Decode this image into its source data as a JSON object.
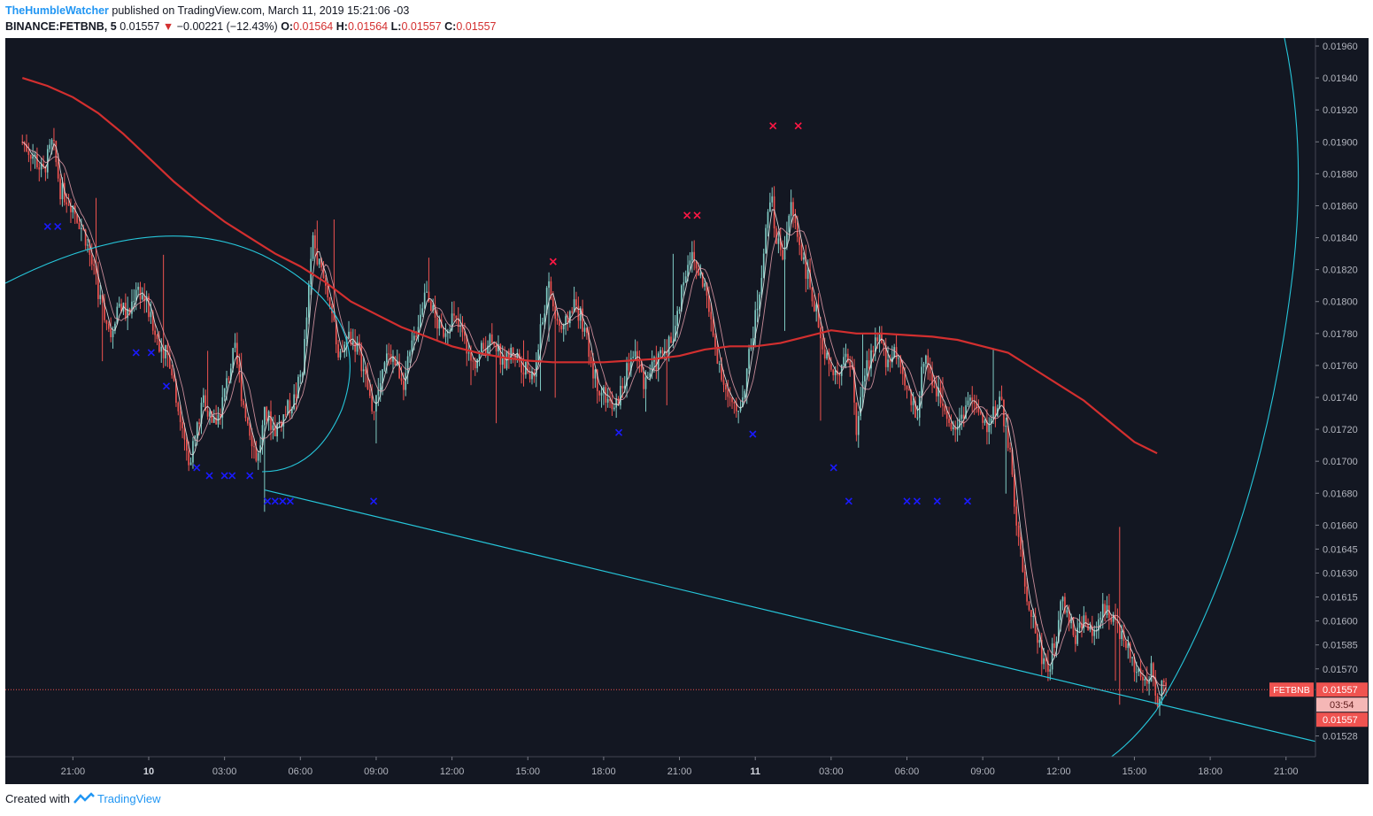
{
  "header": {
    "author": "TheHumbleWatcher",
    "published": "published on TradingView.com, March 11, 2019 15:21:06 -03",
    "symbol": "BINANCE:FETBNB, 5",
    "last": "0.01557",
    "arrow": "▼",
    "change": "−0.00221 (−12.43%)",
    "o_label": "O:",
    "o_value": "0.01564",
    "h_label": "H:",
    "h_value": "0.01564",
    "l_label": "L:",
    "l_value": "0.01557",
    "c_label": "C:",
    "c_value": "0.01557"
  },
  "footer": {
    "created_with": "Created with",
    "brand": "TradingView"
  },
  "colors": {
    "background": "#131722",
    "bull": "#80cbc4",
    "bear": "#ef5350",
    "ma_slow": "#d32f2f",
    "ma_fast": "#e8e8e8",
    "ma_fast2": "#f3a8b5",
    "drawing": "#26c6da",
    "buy_marker": "#1a1aff",
    "sell_marker": "#ff1744",
    "axis_text": "#b2b5be",
    "price_label_bg": "#ef5350"
  },
  "chart_data": {
    "type": "candlestick",
    "symbol": "FETBNB",
    "interval": "5",
    "ylim": [
      0.01515,
      0.01965
    ],
    "x_hours_range": [
      -5,
      50
    ],
    "y_ticks": [
      "0.01960",
      "0.01940",
      "0.01920",
      "0.01900",
      "0.01880",
      "0.01860",
      "0.01840",
      "0.01820",
      "0.01800",
      "0.01780",
      "0.01760",
      "0.01740",
      "0.01720",
      "0.01700",
      "0.01680",
      "0.01660",
      "0.01645",
      "0.01630",
      "0.01615",
      "0.01600",
      "0.01585",
      "0.01570",
      "0.01528"
    ],
    "x_ticks": [
      {
        "label": "21:00",
        "h": -3
      },
      {
        "label": "10",
        "h": 0,
        "bold": true
      },
      {
        "label": "03:00",
        "h": 3
      },
      {
        "label": "06:00",
        "h": 6
      },
      {
        "label": "09:00",
        "h": 9
      },
      {
        "label": "12:00",
        "h": 12
      },
      {
        "label": "15:00",
        "h": 15
      },
      {
        "label": "18:00",
        "h": 18
      },
      {
        "label": "21:00",
        "h": 21
      },
      {
        "label": "11",
        "h": 24,
        "bold": true
      },
      {
        "label": "03:00",
        "h": 27
      },
      {
        "label": "06:00",
        "h": 30
      },
      {
        "label": "09:00",
        "h": 33
      },
      {
        "label": "12:00",
        "h": 36
      },
      {
        "label": "15:00",
        "h": 39
      },
      {
        "label": "18:00",
        "h": 42
      },
      {
        "label": "21:00",
        "h": 45
      }
    ],
    "price_path": [
      [
        -5.0,
        0.019
      ],
      [
        -4.5,
        0.0189
      ],
      [
        -4.2,
        0.0188
      ],
      [
        -3.8,
        0.019
      ],
      [
        -3.5,
        0.0187
      ],
      [
        -3.0,
        0.0186
      ],
      [
        -2.5,
        0.0184
      ],
      [
        -2.2,
        0.0182
      ],
      [
        -1.9,
        0.018
      ],
      [
        -1.5,
        0.0178
      ],
      [
        -1.2,
        0.018
      ],
      [
        -0.8,
        0.0179
      ],
      [
        -0.5,
        0.0181
      ],
      [
        -0.1,
        0.018
      ],
      [
        0.2,
        0.0178
      ],
      [
        0.6,
        0.0177
      ],
      [
        0.9,
        0.0176
      ],
      [
        1.1,
        0.0174
      ],
      [
        1.3,
        0.0172
      ],
      [
        1.6,
        0.017
      ],
      [
        1.9,
        0.0172
      ],
      [
        2.2,
        0.0174
      ],
      [
        2.5,
        0.0172
      ],
      [
        2.8,
        0.0173
      ],
      [
        3.1,
        0.0175
      ],
      [
        3.4,
        0.0177
      ],
      [
        3.7,
        0.0174
      ],
      [
        4.0,
        0.0172
      ],
      [
        4.3,
        0.017
      ],
      [
        4.6,
        0.0173
      ],
      [
        5.0,
        0.0172
      ],
      [
        5.4,
        0.0173
      ],
      [
        5.8,
        0.0174
      ],
      [
        6.1,
        0.0176
      ],
      [
        6.3,
        0.018
      ],
      [
        6.5,
        0.0184
      ],
      [
        6.8,
        0.0182
      ],
      [
        7.2,
        0.018
      ],
      [
        7.5,
        0.0176
      ],
      [
        7.9,
        0.0178
      ],
      [
        8.3,
        0.0177
      ],
      [
        8.6,
        0.0175
      ],
      [
        8.9,
        0.0173
      ],
      [
        9.2,
        0.0175
      ],
      [
        9.5,
        0.0177
      ],
      [
        9.8,
        0.0176
      ],
      [
        10.1,
        0.0175
      ],
      [
        10.4,
        0.0177
      ],
      [
        10.7,
        0.0179
      ],
      [
        11.0,
        0.0181
      ],
      [
        11.3,
        0.0179
      ],
      [
        11.6,
        0.0178
      ],
      [
        12.0,
        0.0179
      ],
      [
        12.4,
        0.0178
      ],
      [
        12.8,
        0.0176
      ],
      [
        13.2,
        0.0177
      ],
      [
        13.6,
        0.0178
      ],
      [
        14.0,
        0.0176
      ],
      [
        14.4,
        0.0177
      ],
      [
        14.8,
        0.0176
      ],
      [
        15.2,
        0.0175
      ],
      [
        15.5,
        0.0178
      ],
      [
        15.8,
        0.0181
      ],
      [
        16.1,
        0.0179
      ],
      [
        16.4,
        0.0178
      ],
      [
        16.8,
        0.018
      ],
      [
        17.1,
        0.0179
      ],
      [
        17.4,
        0.0177
      ],
      [
        17.7,
        0.0175
      ],
      [
        18.1,
        0.0174
      ],
      [
        18.4,
        0.0173
      ],
      [
        18.8,
        0.0175
      ],
      [
        19.2,
        0.0177
      ],
      [
        19.6,
        0.0175
      ],
      [
        20.0,
        0.0176
      ],
      [
        20.4,
        0.0177
      ],
      [
        20.8,
        0.0178
      ],
      [
        21.1,
        0.0181
      ],
      [
        21.4,
        0.0183
      ],
      [
        21.7,
        0.0182
      ],
      [
        22.0,
        0.0181
      ],
      [
        22.3,
        0.0178
      ],
      [
        22.6,
        0.0176
      ],
      [
        22.9,
        0.0174
      ],
      [
        23.2,
        0.0173
      ],
      [
        23.5,
        0.0174
      ],
      [
        23.8,
        0.0177
      ],
      [
        24.1,
        0.018
      ],
      [
        24.4,
        0.0184
      ],
      [
        24.6,
        0.0187
      ],
      [
        24.8,
        0.0184
      ],
      [
        25.1,
        0.0183
      ],
      [
        25.4,
        0.0186
      ],
      [
        25.7,
        0.0184
      ],
      [
        26.0,
        0.0182
      ],
      [
        26.3,
        0.018
      ],
      [
        26.6,
        0.0178
      ],
      [
        26.9,
        0.0176
      ],
      [
        27.2,
        0.0175
      ],
      [
        27.5,
        0.0177
      ],
      [
        27.8,
        0.0176
      ],
      [
        28.0,
        0.0172
      ],
      [
        28.3,
        0.0175
      ],
      [
        28.6,
        0.0177
      ],
      [
        28.9,
        0.0178
      ],
      [
        29.2,
        0.0176
      ],
      [
        29.5,
        0.0177
      ],
      [
        29.8,
        0.0175
      ],
      [
        30.1,
        0.0174
      ],
      [
        30.4,
        0.0173
      ],
      [
        30.7,
        0.0177
      ],
      [
        31.0,
        0.0175
      ],
      [
        31.3,
        0.0174
      ],
      [
        31.6,
        0.0173
      ],
      [
        31.9,
        0.0172
      ],
      [
        32.2,
        0.0173
      ],
      [
        32.5,
        0.0174
      ],
      [
        32.8,
        0.0173
      ],
      [
        33.1,
        0.0172
      ],
      [
        33.4,
        0.0173
      ],
      [
        33.7,
        0.0174
      ],
      [
        33.9,
        0.0172
      ],
      [
        34.1,
        0.017
      ],
      [
        34.3,
        0.0167
      ],
      [
        34.5,
        0.0164
      ],
      [
        34.7,
        0.0162
      ],
      [
        35.0,
        0.016
      ],
      [
        35.3,
        0.0158
      ],
      [
        35.6,
        0.0157
      ],
      [
        35.9,
        0.0159
      ],
      [
        36.1,
        0.0162
      ],
      [
        36.4,
        0.016
      ],
      [
        36.7,
        0.0159
      ],
      [
        37.0,
        0.016
      ],
      [
        37.3,
        0.0159
      ],
      [
        37.6,
        0.016
      ],
      [
        37.9,
        0.0161
      ],
      [
        38.2,
        0.016
      ],
      [
        38.5,
        0.0159
      ],
      [
        38.8,
        0.0158
      ],
      [
        39.1,
        0.0157
      ],
      [
        39.4,
        0.0156
      ],
      [
        39.7,
        0.0157
      ],
      [
        39.9,
        0.0155
      ],
      [
        40.1,
        0.0156
      ],
      [
        40.3,
        0.0156
      ]
    ],
    "ma_slow_path": [
      [
        -5.0,
        0.0194
      ],
      [
        -4.0,
        0.01935
      ],
      [
        -3.0,
        0.01928
      ],
      [
        -2.0,
        0.01918
      ],
      [
        -1.0,
        0.01905
      ],
      [
        0.0,
        0.0189
      ],
      [
        1.0,
        0.01875
      ],
      [
        2.0,
        0.01862
      ],
      [
        3.0,
        0.0185
      ],
      [
        4.0,
        0.0184
      ],
      [
        5.0,
        0.0183
      ],
      [
        6.0,
        0.01822
      ],
      [
        7.0,
        0.01812
      ],
      [
        8.0,
        0.018
      ],
      [
        9.0,
        0.01792
      ],
      [
        10.0,
        0.01784
      ],
      [
        11.0,
        0.01778
      ],
      [
        12.0,
        0.01772
      ],
      [
        13.0,
        0.01768
      ],
      [
        14.0,
        0.01765
      ],
      [
        15.0,
        0.01763
      ],
      [
        16.0,
        0.01762
      ],
      [
        17.0,
        0.01762
      ],
      [
        18.0,
        0.01762
      ],
      [
        19.0,
        0.01763
      ],
      [
        20.0,
        0.01764
      ],
      [
        21.0,
        0.01766
      ],
      [
        22.0,
        0.0177
      ],
      [
        23.0,
        0.01772
      ],
      [
        24.0,
        0.01772
      ],
      [
        25.0,
        0.01774
      ],
      [
        26.0,
        0.01778
      ],
      [
        27.0,
        0.01782
      ],
      [
        28.0,
        0.0178
      ],
      [
        29.0,
        0.0178
      ],
      [
        30.0,
        0.01779
      ],
      [
        31.0,
        0.01778
      ],
      [
        32.0,
        0.01776
      ],
      [
        33.0,
        0.01772
      ],
      [
        34.0,
        0.01768
      ],
      [
        35.0,
        0.01758
      ],
      [
        36.0,
        0.01748
      ],
      [
        37.0,
        0.01738
      ],
      [
        38.0,
        0.01725
      ],
      [
        39.0,
        0.01712
      ],
      [
        39.9,
        0.01705
      ]
    ],
    "markers": {
      "buy": [
        [
          -4.0,
          0.01847
        ],
        [
          -3.6,
          0.01847
        ],
        [
          -0.5,
          0.01768
        ],
        [
          0.1,
          0.01768
        ],
        [
          0.7,
          0.01747
        ],
        [
          1.9,
          0.01696
        ],
        [
          2.4,
          0.01691
        ],
        [
          3.0,
          0.01691
        ],
        [
          3.3,
          0.01691
        ],
        [
          4.0,
          0.01691
        ],
        [
          4.7,
          0.01675
        ],
        [
          5.0,
          0.01675
        ],
        [
          5.3,
          0.01675
        ],
        [
          5.6,
          0.01675
        ],
        [
          8.9,
          0.01675
        ],
        [
          18.6,
          0.01718
        ],
        [
          23.9,
          0.01717
        ],
        [
          27.1,
          0.01696
        ],
        [
          27.7,
          0.01675
        ],
        [
          30.0,
          0.01675
        ],
        [
          30.4,
          0.01675
        ],
        [
          31.2,
          0.01675
        ],
        [
          32.4,
          0.01675
        ]
      ],
      "sell": [
        [
          16.0,
          0.01825
        ],
        [
          21.3,
          0.01854
        ],
        [
          21.7,
          0.01854
        ],
        [
          24.7,
          0.0191
        ],
        [
          25.7,
          0.0191
        ]
      ]
    },
    "trendline": [
      [
        4.6,
        0.01682
      ],
      [
        50.0,
        0.0151
      ]
    ],
    "current_price_label": "FETBNB",
    "current_price": "0.01557",
    "countdown": "03:54",
    "last_price_tag": "0.01557"
  }
}
